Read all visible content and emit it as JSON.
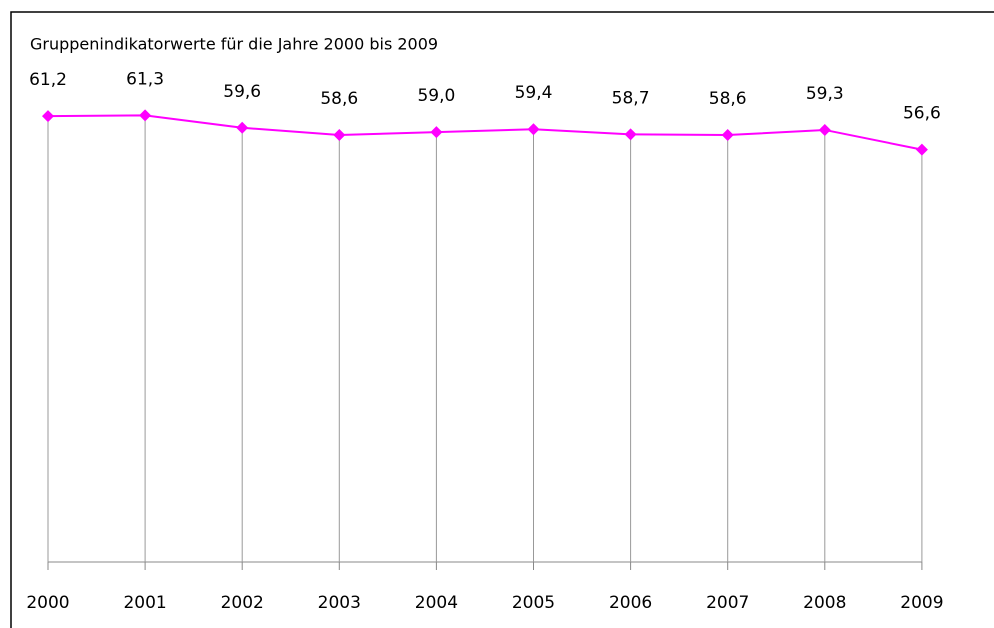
{
  "chart_data": {
    "type": "line",
    "title": "Gruppenindikatorwerte für die Jahre 2000 bis 2009",
    "categories": [
      "2000",
      "2001",
      "2002",
      "2003",
      "2004",
      "2005",
      "2006",
      "2007",
      "2008",
      "2009"
    ],
    "values": [
      61.2,
      61.3,
      59.6,
      58.6,
      59.0,
      59.4,
      58.7,
      58.6,
      59.3,
      56.6
    ],
    "value_labels": [
      "61,2",
      "61,3",
      "59,6",
      "58,6",
      "59,0",
      "59,4",
      "58,7",
      "58,6",
      "59,3",
      "56,6"
    ],
    "color": "#ff00ff",
    "ylim": [
      0,
      70
    ],
    "drop_lines": true
  }
}
